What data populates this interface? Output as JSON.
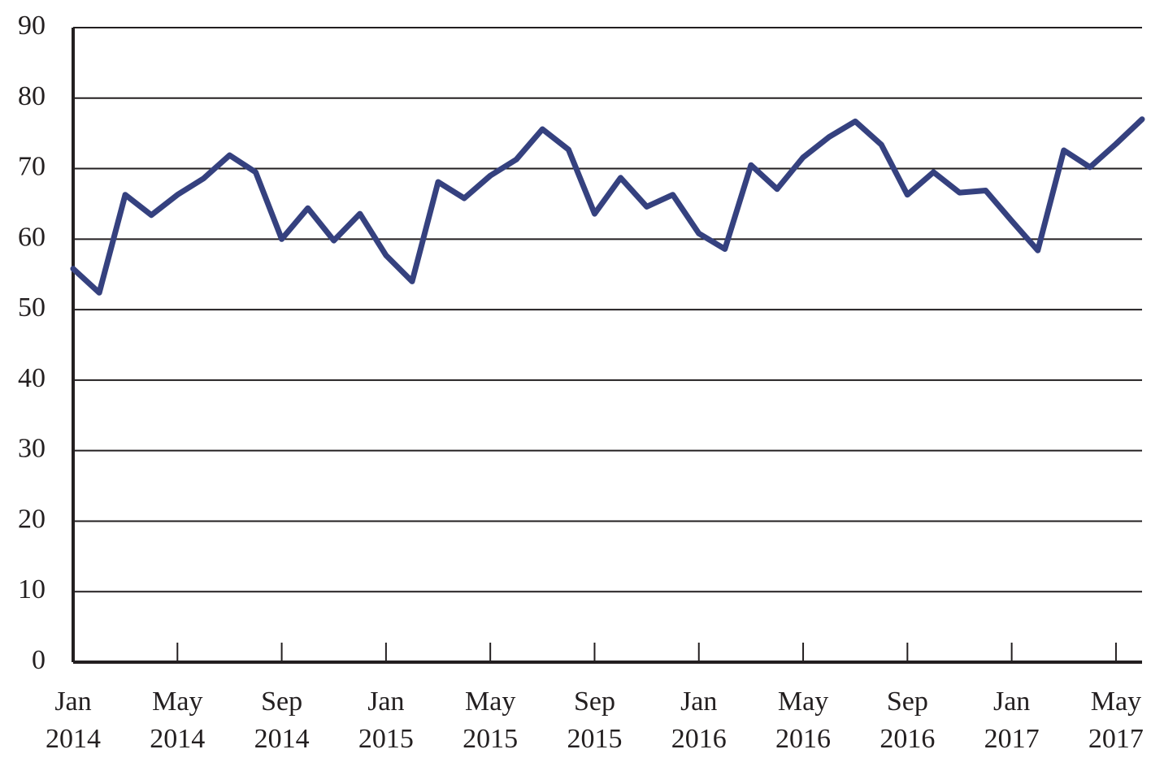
{
  "chart_data": {
    "type": "line",
    "title": "",
    "xlabel": "",
    "ylabel": "",
    "ylim": [
      0,
      90
    ],
    "y_ticks": [
      0,
      10,
      20,
      30,
      40,
      50,
      60,
      70,
      80,
      90
    ],
    "grid": true,
    "x": [
      "2014-01",
      "2014-02",
      "2014-03",
      "2014-04",
      "2014-05",
      "2014-06",
      "2014-07",
      "2014-08",
      "2014-09",
      "2014-10",
      "2014-11",
      "2014-12",
      "2015-01",
      "2015-02",
      "2015-03",
      "2015-04",
      "2015-05",
      "2015-06",
      "2015-07",
      "2015-08",
      "2015-09",
      "2015-10",
      "2015-11",
      "2015-12",
      "2016-01",
      "2016-02",
      "2016-03",
      "2016-04",
      "2016-05",
      "2016-06",
      "2016-07",
      "2016-08",
      "2016-09",
      "2016-10",
      "2016-11",
      "2016-12",
      "2017-01",
      "2017-02",
      "2017-03",
      "2017-04",
      "2017-05",
      "2017-06"
    ],
    "x_tick_labels": [
      {
        "month": "Jan",
        "year": "2014"
      },
      {
        "month": "May",
        "year": "2014"
      },
      {
        "month": "Sep",
        "year": "2014"
      },
      {
        "month": "Jan",
        "year": "2015"
      },
      {
        "month": "May",
        "year": "2015"
      },
      {
        "month": "Sep",
        "year": "2015"
      },
      {
        "month": "Jan",
        "year": "2016"
      },
      {
        "month": "May",
        "year": "2016"
      },
      {
        "month": "Sep",
        "year": "2016"
      },
      {
        "month": "Jan",
        "year": "2017"
      },
      {
        "month": "May",
        "year": "2017"
      }
    ],
    "series": [
      {
        "color": "#35417f",
        "values": [
          55.8,
          52.4,
          66.3,
          63.4,
          66.3,
          68.6,
          71.9,
          69.5,
          60.0,
          64.4,
          59.8,
          63.6,
          57.7,
          54.0,
          68.1,
          65.8,
          69.0,
          71.3,
          75.6,
          72.7,
          63.6,
          68.7,
          64.6,
          66.3,
          60.8,
          58.6,
          70.5,
          67.1,
          71.6,
          74.5,
          76.7,
          73.4,
          66.3,
          69.5,
          66.6,
          66.9,
          62.6,
          58.4,
          72.6,
          70.2,
          73.5,
          77.0
        ]
      }
    ]
  }
}
